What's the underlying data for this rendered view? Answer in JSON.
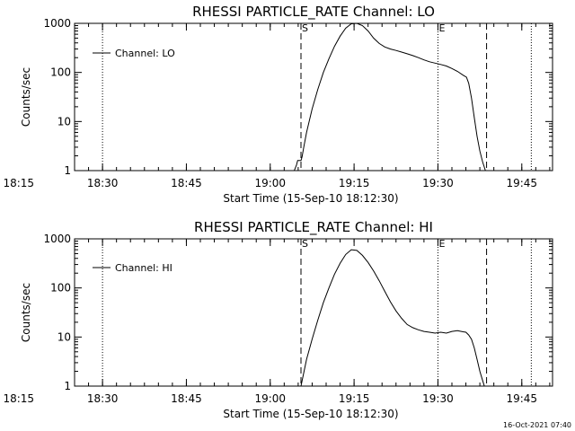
{
  "timestamp": "16-Oct-2021 07:40",
  "chart_data": [
    {
      "type": "line",
      "title": "RHESSI PARTICLE_RATE Channel: LO",
      "xlabel": "Start Time (15-Sep-10 18:12:30)",
      "ylabel": "Counts/sec",
      "legend": "Channel: LO",
      "legend_position": "top-left",
      "yscale": "log",
      "ylim": [
        1,
        1000
      ],
      "xlim_min": [
        12.5,
        98.0
      ],
      "x_ticks": [
        {
          "min": 2.5,
          "label": "18:15"
        },
        {
          "min": 17.5,
          "label": "18:30"
        },
        {
          "min": 32.5,
          "label": "18:45"
        },
        {
          "min": 47.5,
          "label": "19:00"
        },
        {
          "min": 62.5,
          "label": "19:15"
        },
        {
          "min": 77.5,
          "label": "19:30"
        },
        {
          "min": 92.5,
          "label": "19:45"
        }
      ],
      "y_ticks": [
        {
          "value": 1,
          "label": "1"
        },
        {
          "value": 10,
          "label": "10"
        },
        {
          "value": 100,
          "label": "100"
        },
        {
          "value": 1000,
          "label": "1000"
        }
      ],
      "dotted_lines_min": [
        17.5,
        77.5,
        94.2
      ],
      "dashed_lines_min": [
        53.0,
        86.2
      ],
      "markers": [
        {
          "min": 53.0,
          "label": "S"
        },
        {
          "min": 77.5,
          "label": "E"
        }
      ],
      "x_min": [
        51.8,
        52.2,
        52.4,
        53.0,
        53.2,
        53.5,
        54.0,
        55.0,
        56.0,
        57.0,
        58.0,
        59.0,
        60.0,
        61.0,
        62.0,
        63.0,
        64.0,
        65.0,
        66.0,
        67.0,
        68.0,
        69.0,
        70.0,
        71.0,
        72.0,
        73.0,
        74.0,
        75.0,
        76.0,
        77.0,
        78.0,
        79.0,
        80.0,
        81.0,
        82.0,
        82.6,
        83.0,
        83.5,
        84.0,
        84.5,
        85.0,
        85.5,
        86.0
      ],
      "y": [
        1.0,
        1.3,
        1.6,
        1.6,
        1.9,
        3.0,
        6.0,
        18.0,
        45.0,
        100.0,
        190.0,
        340.0,
        550.0,
        800.0,
        980.0,
        1000.0,
        900.0,
        700.0,
        500.0,
        390.0,
        330.0,
        300.0,
        280.0,
        260.0,
        240.0,
        220.0,
        200.0,
        180.0,
        165.0,
        155.0,
        145.0,
        135.0,
        120.0,
        105.0,
        88.0,
        80.0,
        60.0,
        30.0,
        12.0,
        5.0,
        2.5,
        1.5,
        1.0
      ]
    },
    {
      "type": "line",
      "title": "RHESSI PARTICLE_RATE Channel: HI",
      "xlabel": "Start Time (15-Sep-10 18:12:30)",
      "ylabel": "Counts/sec",
      "legend": "Channel: HI",
      "legend_position": "top-left",
      "yscale": "log",
      "ylim": [
        1,
        1000
      ],
      "xlim_min": [
        12.5,
        98.0
      ],
      "x_ticks": [
        {
          "min": 2.5,
          "label": "18:15"
        },
        {
          "min": 17.5,
          "label": "18:30"
        },
        {
          "min": 32.5,
          "label": "18:45"
        },
        {
          "min": 47.5,
          "label": "19:00"
        },
        {
          "min": 62.5,
          "label": "19:15"
        },
        {
          "min": 77.5,
          "label": "19:30"
        },
        {
          "min": 92.5,
          "label": "19:45"
        }
      ],
      "y_ticks": [
        {
          "value": 1,
          "label": "1"
        },
        {
          "value": 10,
          "label": "10"
        },
        {
          "value": 100,
          "label": "100"
        },
        {
          "value": 1000,
          "label": "1000"
        }
      ],
      "dotted_lines_min": [
        17.5,
        77.5,
        94.2
      ],
      "dashed_lines_min": [
        53.0,
        86.2
      ],
      "markers": [
        {
          "min": 53.0,
          "label": "S"
        },
        {
          "min": 77.5,
          "label": "E"
        }
      ],
      "x_min": [
        53.0,
        54.0,
        55.0,
        56.0,
        57.0,
        58.0,
        59.0,
        60.0,
        61.0,
        62.0,
        63.0,
        64.0,
        65.0,
        66.0,
        67.0,
        68.0,
        69.0,
        70.0,
        71.0,
        72.0,
        73.0,
        74.0,
        75.0,
        76.0,
        77.0,
        78.0,
        79.0,
        80.0,
        81.0,
        82.0,
        82.5,
        83.0,
        83.5,
        84.0,
        84.5,
        85.0,
        85.5,
        85.8
      ],
      "y": [
        1.0,
        3.5,
        9.0,
        22.0,
        50.0,
        100.0,
        190.0,
        320.0,
        480.0,
        600.0,
        580.0,
        460.0,
        330.0,
        220.0,
        140.0,
        85.0,
        52.0,
        34.0,
        24.0,
        18.0,
        15.5,
        14.0,
        13.0,
        12.5,
        12.0,
        12.5,
        12.0,
        13.0,
        13.5,
        12.8,
        12.5,
        11.0,
        9.0,
        6.0,
        3.5,
        2.0,
        1.3,
        1.0
      ]
    }
  ]
}
